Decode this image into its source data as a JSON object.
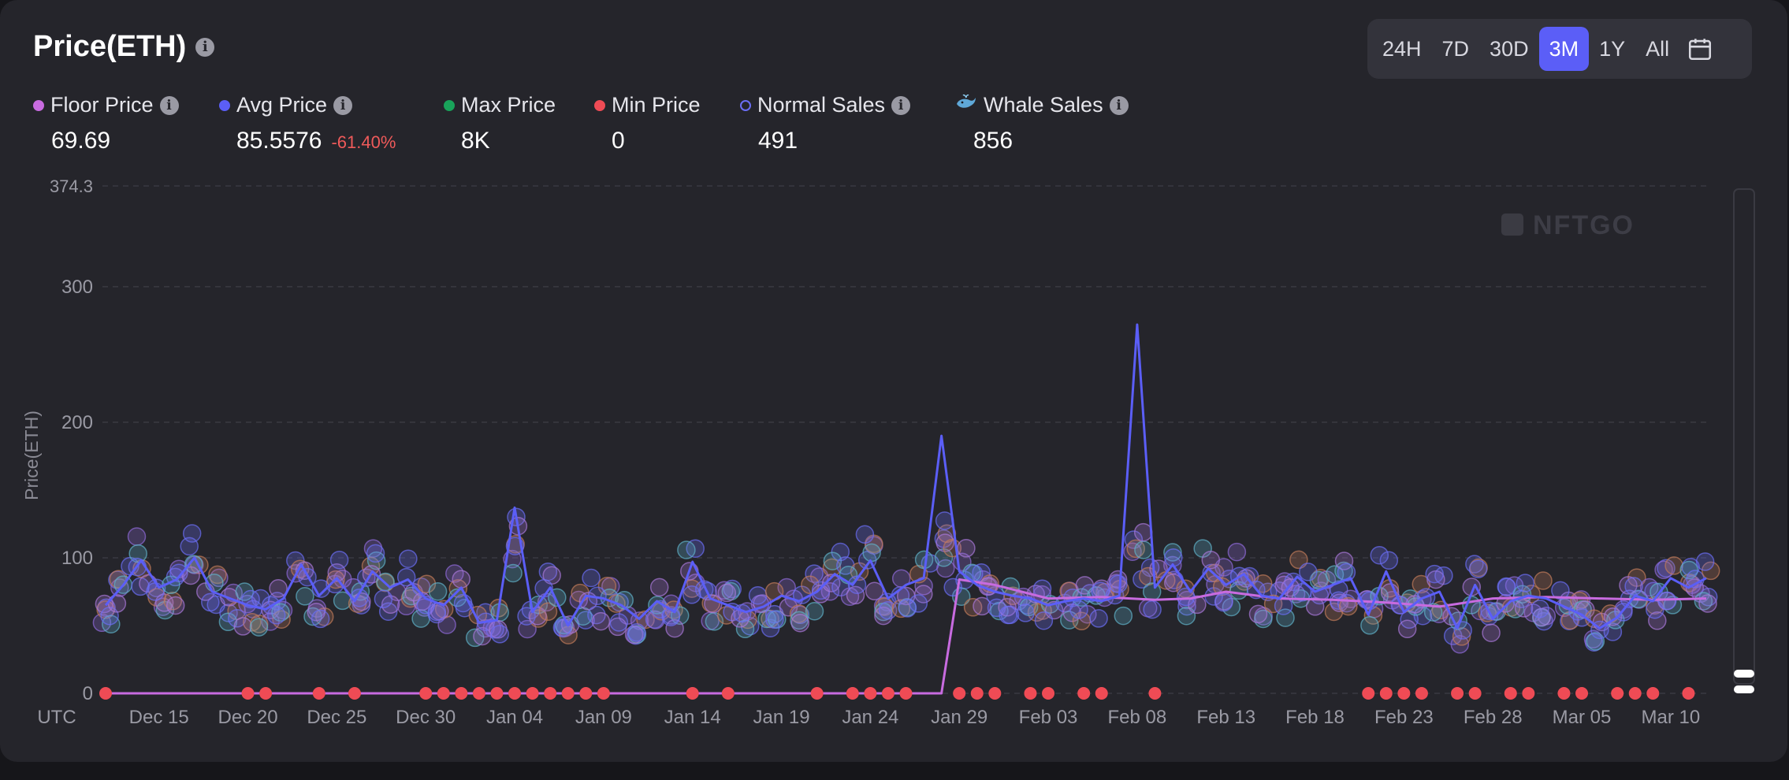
{
  "header": {
    "title": "Price(ETH)"
  },
  "ranges": [
    {
      "label": "24H",
      "active": false
    },
    {
      "label": "7D",
      "active": false
    },
    {
      "label": "30D",
      "active": false
    },
    {
      "label": "3M",
      "active": true
    },
    {
      "label": "1Y",
      "active": false
    },
    {
      "label": "All",
      "active": false
    }
  ],
  "stats": {
    "floor": {
      "label": "Floor Price",
      "value": "69.69",
      "color": "#c86be0"
    },
    "avg": {
      "label": "Avg Price",
      "value": "85.5576",
      "change": "-61.40%",
      "color": "#5b5ef7"
    },
    "max": {
      "label": "Max Price",
      "value": "8K",
      "color": "#19a35a"
    },
    "min": {
      "label": "Min Price",
      "value": "0",
      "color": "#ef4b55"
    },
    "normal": {
      "label": "Normal Sales",
      "value": "491",
      "color": "#6b6ef5"
    },
    "whale": {
      "label": "Whale Sales",
      "value": "856",
      "icon": "whale-icon"
    }
  },
  "watermark": "NFTGO",
  "chart_data": {
    "type": "line",
    "ylabel": "Price(ETH)",
    "ylim": [
      0,
      374.3
    ],
    "yticks": [
      "374.3",
      "300",
      "200",
      "100",
      "0"
    ],
    "timezone_label": "UTC",
    "x_tick_labels": [
      "Dec 15",
      "Dec 20",
      "Dec 25",
      "Dec 30",
      "Jan 04",
      "Jan 09",
      "Jan 14",
      "Jan 19",
      "Jan 24",
      "Jan 29",
      "Feb 03",
      "Feb 08",
      "Feb 13",
      "Feb 18",
      "Feb 23",
      "Feb 28",
      "Mar 05",
      "Mar 10"
    ],
    "x_range": [
      "2022-12-12",
      "2023-03-12"
    ],
    "grid": true,
    "series": [
      {
        "name": "Floor Price",
        "color": "#c86be0",
        "x": [
          "2022-12-12",
          "2023-01-28",
          "2023-01-29",
          "2023-01-31",
          "2023-02-03",
          "2023-02-06",
          "2023-02-09",
          "2023-02-11",
          "2023-02-13",
          "2023-02-16",
          "2023-02-19",
          "2023-02-22",
          "2023-02-25",
          "2023-02-28",
          "2023-03-03",
          "2023-03-06",
          "2023-03-09",
          "2023-03-12"
        ],
        "values": [
          0,
          0,
          84,
          80,
          70,
          71,
          69,
          70,
          75,
          70,
          69,
          67,
          64,
          70,
          71,
          70,
          69,
          70
        ]
      },
      {
        "name": "Avg Price",
        "color": "#5b5ef7",
        "x": [
          "2022-12-12",
          "2022-12-13",
          "2022-12-14",
          "2022-12-15",
          "2022-12-16",
          "2022-12-17",
          "2022-12-18",
          "2022-12-19",
          "2022-12-20",
          "2022-12-21",
          "2022-12-22",
          "2022-12-23",
          "2022-12-24",
          "2022-12-25",
          "2022-12-26",
          "2022-12-27",
          "2022-12-28",
          "2022-12-29",
          "2022-12-30",
          "2022-12-31",
          "2023-01-01",
          "2023-01-02",
          "2023-01-03",
          "2023-01-04",
          "2023-01-05",
          "2023-01-06",
          "2023-01-07",
          "2023-01-08",
          "2023-01-09",
          "2023-01-10",
          "2023-01-11",
          "2023-01-12",
          "2023-01-13",
          "2023-01-14",
          "2023-01-15",
          "2023-01-16",
          "2023-01-17",
          "2023-01-18",
          "2023-01-19",
          "2023-01-20",
          "2023-01-21",
          "2023-01-22",
          "2023-01-23",
          "2023-01-24",
          "2023-01-25",
          "2023-01-26",
          "2023-01-27",
          "2023-01-28",
          "2023-01-29",
          "2023-01-30",
          "2023-01-31",
          "2023-02-01",
          "2023-02-02",
          "2023-02-03",
          "2023-02-04",
          "2023-02-05",
          "2023-02-06",
          "2023-02-07",
          "2023-02-08",
          "2023-02-09",
          "2023-02-10",
          "2023-02-11",
          "2023-02-12",
          "2023-02-13",
          "2023-02-14",
          "2023-02-15",
          "2023-02-16",
          "2023-02-17",
          "2023-02-18",
          "2023-02-19",
          "2023-02-20",
          "2023-02-21",
          "2023-02-22",
          "2023-02-23",
          "2023-02-24",
          "2023-02-25",
          "2023-02-26",
          "2023-02-27",
          "2023-02-28",
          "2023-03-01",
          "2023-03-02",
          "2023-03-03",
          "2023-03-04",
          "2023-03-05",
          "2023-03-06",
          "2023-03-07",
          "2023-03-08",
          "2023-03-09",
          "2023-03-10",
          "2023-03-11",
          "2023-03-12"
        ],
        "values": [
          65,
          80,
          98,
          78,
          84,
          100,
          75,
          70,
          65,
          62,
          70,
          95,
          72,
          85,
          68,
          90,
          78,
          84,
          70,
          65,
          78,
          52,
          54,
          137,
          60,
          78,
          50,
          72,
          70,
          65,
          55,
          68,
          60,
          97,
          70,
          65,
          60,
          64,
          72,
          68,
          75,
          88,
          80,
          98,
          70,
          80,
          85,
          190,
          90,
          80,
          75,
          72,
          70,
          65,
          68,
          70,
          68,
          72,
          272,
          78,
          95,
          75,
          92,
          80,
          88,
          72,
          70,
          86,
          75,
          80,
          85,
          58,
          90,
          60,
          70,
          75,
          48,
          80,
          55,
          68,
          72,
          70,
          64,
          58,
          48,
          56,
          72,
          68,
          85,
          78,
          85
        ]
      },
      {
        "name": "Min Price",
        "color": "#ef4b55",
        "x": [
          "2022-12-12",
          "2022-12-20",
          "2022-12-21",
          "2022-12-24",
          "2022-12-26",
          "2022-12-30",
          "2022-12-31",
          "2023-01-01",
          "2023-01-02",
          "2023-01-03",
          "2023-01-04",
          "2023-01-05",
          "2023-01-06",
          "2023-01-07",
          "2023-01-08",
          "2023-01-09",
          "2023-01-14",
          "2023-01-16",
          "2023-01-21",
          "2023-01-23",
          "2023-01-24",
          "2023-01-25",
          "2023-01-26",
          "2023-01-29",
          "2023-01-30",
          "2023-01-31",
          "2023-02-02",
          "2023-02-03",
          "2023-02-05",
          "2023-02-06",
          "2023-02-09",
          "2023-02-21",
          "2023-02-22",
          "2023-02-23",
          "2023-02-24",
          "2023-02-26",
          "2023-02-27",
          "2023-03-01",
          "2023-03-02",
          "2023-03-04",
          "2023-03-05",
          "2023-03-07",
          "2023-03-08",
          "2023-03-09",
          "2023-03-11"
        ],
        "values": [
          0,
          0,
          0,
          0,
          0,
          0,
          0,
          0,
          0,
          0,
          0,
          0,
          0,
          0,
          0,
          0,
          0,
          0,
          0,
          0,
          0,
          0,
          0,
          0,
          0,
          0,
          0,
          0,
          0,
          0,
          0,
          0,
          0,
          0,
          0,
          0,
          0,
          0,
          0,
          0,
          0,
          0,
          0,
          0,
          0
        ]
      }
    ]
  }
}
